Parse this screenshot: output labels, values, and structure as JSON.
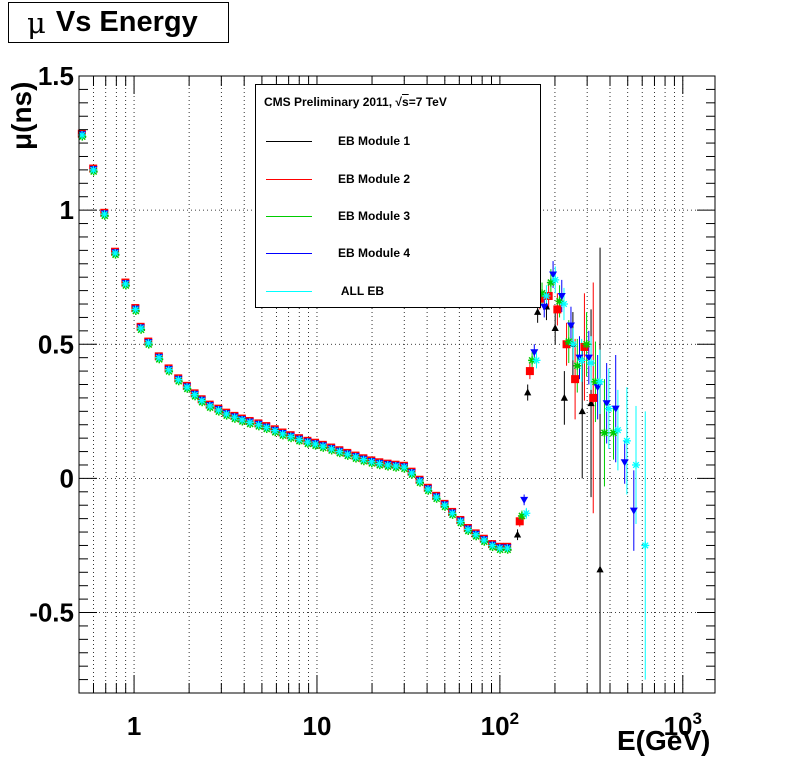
{
  "title": "Vs Energy",
  "title_symbol": "μ",
  "legend": {
    "header_prefix": "CMS Preliminary 2011, ",
    "header_sqrt": "s",
    "header_suffix": "=7 TeV",
    "entries": [
      {
        "label": "EB Module 1",
        "color": "#000000"
      },
      {
        "label": "EB Module 2",
        "color": "#ff0000"
      },
      {
        "label": "EB Module 3",
        "color": "#00cc00"
      },
      {
        "label": "EB Module 4",
        "color": "#0000ff"
      },
      {
        "label": " ALL EB",
        "color": "#00ffff"
      }
    ]
  },
  "chart_data": {
    "type": "scatter",
    "title": "μ Vs Energy",
    "xlabel": "E(GeV)",
    "ylabel": "μ(ns)",
    "xscale": "log",
    "xlim": [
      0.5,
      1500
    ],
    "ylim": [
      -0.8,
      1.5
    ],
    "grid": true,
    "legend_position": "top-center",
    "x_ticks": [
      {
        "value": 1,
        "label": "1"
      },
      {
        "value": 10,
        "label": "10"
      },
      {
        "value": 100,
        "label": "10",
        "sup": "2"
      },
      {
        "value": 1000,
        "label": "10",
        "sup": "3"
      }
    ],
    "y_ticks": [
      {
        "value": -0.5,
        "label": "-0.5"
      },
      {
        "value": 0,
        "label": "0"
      },
      {
        "value": 0.5,
        "label": "0.5"
      },
      {
        "value": 1,
        "label": "1"
      },
      {
        "value": 1.5,
        "label": "1.5"
      }
    ],
    "baseline": {
      "x": [
        0.52,
        0.6,
        0.69,
        0.79,
        0.9,
        1.02,
        1.09,
        1.2,
        1.37,
        1.55,
        1.75,
        1.95,
        2.15,
        2.35,
        2.6,
        2.9,
        3.2,
        3.55,
        3.9,
        4.3,
        4.8,
        5.3,
        5.9,
        6.5,
        7.2,
        8,
        8.9,
        9.8,
        10.8,
        12,
        13.3,
        14.7,
        16.3,
        18,
        19.9,
        22,
        24.4,
        27,
        30,
        33,
        36.5,
        40.5,
        45,
        50,
        55,
        61,
        67,
        74,
        82,
        91,
        100,
        110
      ],
      "y": [
        1.28,
        1.15,
        0.985,
        0.84,
        0.725,
        0.63,
        0.56,
        0.505,
        0.45,
        0.405,
        0.368,
        0.34,
        0.312,
        0.29,
        0.27,
        0.255,
        0.24,
        0.228,
        0.218,
        0.209,
        0.2,
        0.19,
        0.178,
        0.166,
        0.156,
        0.145,
        0.135,
        0.128,
        0.12,
        0.11,
        0.1,
        0.09,
        0.08,
        0.07,
        0.062,
        0.055,
        0.05,
        0.046,
        0.042,
        0.02,
        -0.01,
        -0.04,
        -0.07,
        -0.1,
        -0.13,
        -0.16,
        -0.19,
        -0.21,
        -0.23,
        -0.25,
        -0.26,
        -0.26
      ],
      "offsets": [
        0,
        0.005,
        -0.006,
        0.003
      ]
    },
    "tail": {
      "x": [
        132,
        150,
        170,
        190,
        212,
        238,
        265,
        298,
        333,
        373,
        418,
        468,
        525,
        590
      ],
      "series": [
        {
          "name": "EB Module 1",
          "y": [
            -0.21,
            0.32,
            0.62,
            0.64,
            0.56,
            0.3,
            0.5,
            0.25,
            0.28,
            -0.34,
            null,
            null,
            null,
            null
          ],
          "err": [
            0.02,
            0.03,
            0.04,
            0.05,
            0.06,
            0.1,
            0.12,
            0.25,
            0.35,
            1.2,
            null,
            null,
            null,
            null
          ]
        },
        {
          "name": "EB Module 2",
          "y": [
            -0.16,
            0.4,
            0.67,
            0.68,
            0.63,
            0.5,
            0.37,
            0.49,
            0.3,
            null,
            null,
            null,
            null,
            null
          ],
          "err": [
            0.02,
            0.03,
            0.04,
            0.05,
            0.06,
            0.08,
            0.15,
            0.2,
            0.43,
            null,
            null,
            null,
            null,
            null
          ]
        },
        {
          "name": "EB Module 3",
          "y": [
            -0.14,
            0.44,
            0.69,
            0.73,
            0.66,
            0.51,
            0.42,
            0.5,
            0.36,
            0.17,
            0.17,
            null,
            null,
            null
          ],
          "err": [
            0.02,
            0.03,
            0.04,
            0.05,
            0.06,
            0.08,
            0.1,
            0.12,
            0.15,
            0.2,
            0.1,
            null,
            null,
            null
          ]
        },
        {
          "name": "EB Module 4",
          "y": [
            -0.08,
            0.47,
            0.64,
            0.76,
            0.68,
            0.57,
            0.45,
            0.45,
            0.34,
            0.28,
            0.26,
            0.06,
            -0.12,
            null
          ],
          "err": [
            0.02,
            0.03,
            0.04,
            0.05,
            0.06,
            0.07,
            0.08,
            0.1,
            0.12,
            0.15,
            0.2,
            0.08,
            0.15,
            null
          ]
        },
        {
          "name": "ALL EB",
          "y": [
            -0.13,
            0.44,
            0.68,
            0.74,
            0.65,
            0.5,
            0.44,
            0.43,
            0.36,
            0.26,
            0.18,
            0.14,
            0.05,
            -0.25
          ],
          "err": [
            0.02,
            0.03,
            0.04,
            0.05,
            0.06,
            0.06,
            0.08,
            0.1,
            0.12,
            0.15,
            0.15,
            0.2,
            0.22,
            0.5
          ]
        }
      ]
    }
  }
}
